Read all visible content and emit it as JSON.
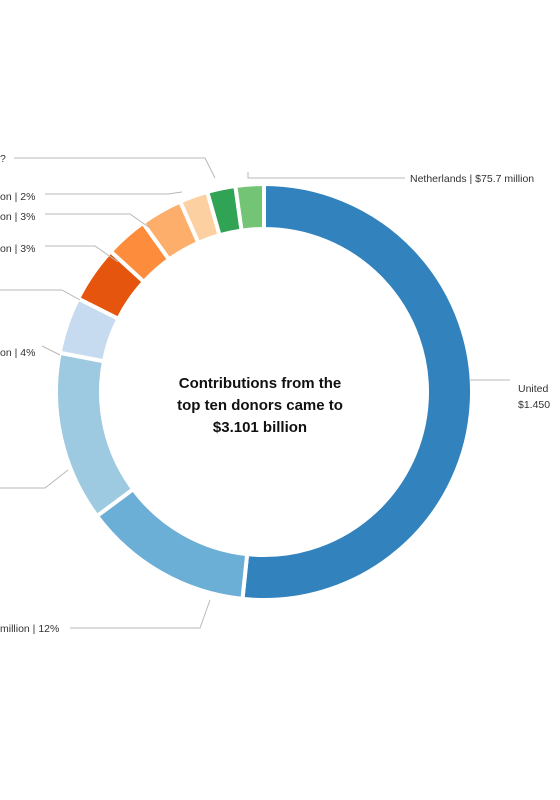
{
  "chart_data": {
    "type": "pie",
    "donut": true,
    "center_text": {
      "line1": "Contributions from the",
      "line2": "top ten donors came to",
      "line3": "$3.101 billion"
    },
    "slices": [
      {
        "value": 47,
        "color": "#3182bd",
        "label_lines": [
          "United",
          "$1.450"
        ]
      },
      {
        "value": 12,
        "color": "#6baed6",
        "label_lines": [
          "million | 12%"
        ]
      },
      {
        "value": 12,
        "color": "#9ecae1",
        "label_lines": []
      },
      {
        "value": 4,
        "color": "#c6dbef",
        "label_lines": [
          "on | 4%"
        ]
      },
      {
        "value": 4,
        "color": "#e6550d",
        "label_lines": []
      },
      {
        "value": 3,
        "color": "#fd8d3c",
        "label_lines": [
          "on | 3%"
        ]
      },
      {
        "value": 3,
        "color": "#fdae6b",
        "label_lines": [
          "on | 3%"
        ]
      },
      {
        "value": 2,
        "color": "#fdd0a2",
        "label_lines": [
          "on | 2%"
        ]
      },
      {
        "value": 2,
        "color": "#31a354",
        "label_lines": [
          "?"
        ]
      },
      {
        "value": 2,
        "color": "#74c476",
        "label_lines": [
          "Netherlands | $75.7 million"
        ]
      }
    ]
  }
}
